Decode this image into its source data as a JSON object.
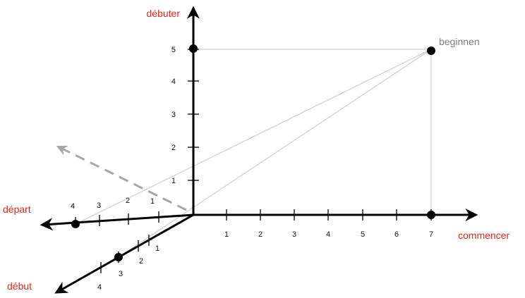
{
  "diagram": {
    "axis_labels": {
      "vertical": "débuter",
      "horizontal": "commencer",
      "left": "départ",
      "depth": "début"
    },
    "point_labels": {
      "corner": "beginnen"
    },
    "ticks": {
      "vertical": [
        "1",
        "2",
        "3",
        "4",
        "5"
      ],
      "horizontal": [
        "1",
        "2",
        "3",
        "4",
        "5",
        "6",
        "7"
      ],
      "left": [
        "1",
        "2",
        "3",
        "4"
      ],
      "depth": [
        "1",
        "2",
        "3",
        "4"
      ]
    },
    "colors": {
      "axis": "#000000",
      "axis_label": "#e8251c",
      "guide": "#cfcfcf",
      "dashed_arrow": "#a8a8a8",
      "point": "#000000",
      "point_label": "#808080"
    }
  }
}
